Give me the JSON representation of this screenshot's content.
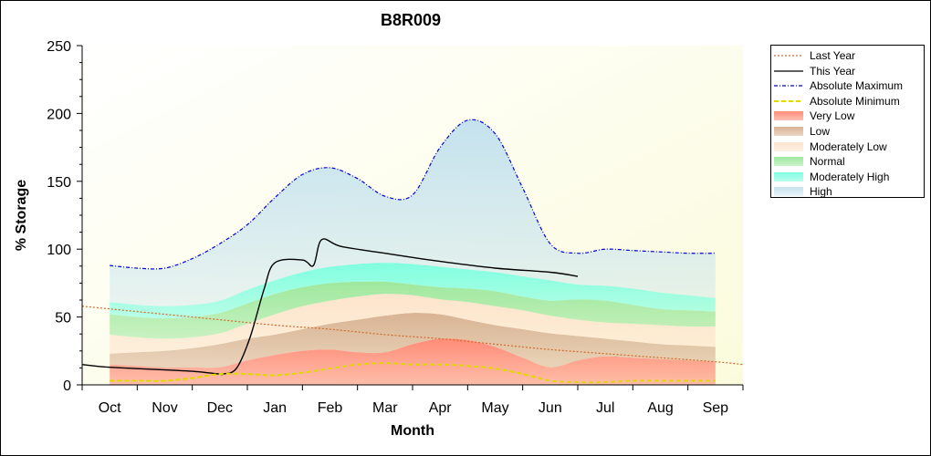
{
  "chart_data": {
    "type": "area",
    "title": "B8R009",
    "xlabel": "Month",
    "ylabel": "% Storage",
    "ylim": [
      0,
      250
    ],
    "yticks": [
      0,
      50,
      100,
      150,
      200,
      250
    ],
    "categories": [
      "Oct",
      "Nov",
      "Dec",
      "Jan",
      "Feb",
      "Mar",
      "Apr",
      "May",
      "Jun",
      "Jul",
      "Aug",
      "Sep"
    ],
    "grid": false,
    "legend_position": "right",
    "x_domain": [
      -0.5,
      11.5
    ],
    "bands_x": [
      0,
      0.5,
      1,
      1.5,
      2,
      2.5,
      3,
      3.5,
      4,
      4.5,
      5,
      5.5,
      6,
      6.5,
      7,
      7.5,
      8,
      8.5,
      9,
      9.5,
      10,
      10.5,
      11
    ],
    "bands": [
      {
        "name": "Very Low",
        "color": "#ff8c78",
        "lower": [
          0,
          0,
          0,
          0,
          0,
          0,
          0,
          0,
          0,
          0,
          0,
          0,
          0,
          0,
          0,
          0,
          0,
          0,
          0,
          0,
          0,
          0,
          0
        ],
        "upper": [
          15,
          14,
          13,
          13,
          13,
          18,
          22,
          25,
          26,
          24,
          24,
          30,
          34,
          33,
          28,
          20,
          13,
          18,
          21,
          20,
          19,
          18,
          17
        ]
      },
      {
        "name": "Low",
        "color": "#d9b394",
        "lower": [
          15,
          14,
          13,
          13,
          13,
          18,
          22,
          25,
          26,
          24,
          24,
          30,
          34,
          33,
          28,
          20,
          13,
          18,
          21,
          20,
          19,
          18,
          17
        ],
        "upper": [
          23,
          24,
          25,
          27,
          30,
          34,
          37,
          41,
          45,
          48,
          51,
          53,
          52,
          48,
          44,
          41,
          38,
          36,
          34,
          32,
          30,
          29,
          28
        ]
      },
      {
        "name": "Moderately Low",
        "color": "#fde4cc",
        "lower": [
          23,
          24,
          25,
          27,
          30,
          34,
          37,
          41,
          45,
          48,
          51,
          53,
          52,
          48,
          44,
          41,
          38,
          36,
          34,
          32,
          30,
          29,
          28
        ],
        "upper": [
          37,
          35,
          34,
          35,
          38,
          45,
          52,
          58,
          62,
          65,
          67,
          66,
          63,
          61,
          58,
          55,
          51,
          48,
          46,
          45,
          44,
          43,
          43
        ]
      },
      {
        "name": "Normal",
        "color": "#9ee89e",
        "lower": [
          37,
          35,
          34,
          35,
          38,
          45,
          52,
          58,
          62,
          65,
          67,
          66,
          63,
          61,
          58,
          55,
          51,
          48,
          46,
          45,
          44,
          43,
          43
        ],
        "upper": [
          52,
          50,
          49,
          50,
          53,
          60,
          67,
          72,
          75,
          76,
          76,
          74,
          72,
          71,
          69,
          65,
          62,
          63,
          62,
          59,
          56,
          55,
          54
        ]
      },
      {
        "name": "Moderately High",
        "color": "#80ffe0",
        "lower": [
          52,
          50,
          49,
          50,
          53,
          60,
          67,
          72,
          75,
          76,
          76,
          74,
          72,
          71,
          69,
          65,
          62,
          63,
          62,
          59,
          56,
          55,
          54
        ],
        "upper": [
          61,
          59,
          58,
          59,
          62,
          70,
          77,
          83,
          87,
          89,
          90,
          89,
          87,
          85,
          83,
          80,
          77,
          74,
          73,
          71,
          68,
          66,
          64
        ]
      },
      {
        "name": "High",
        "color": "#c4e2ee",
        "lower": [
          61,
          59,
          58,
          59,
          62,
          70,
          77,
          83,
          87,
          89,
          90,
          89,
          87,
          85,
          83,
          80,
          77,
          74,
          73,
          71,
          68,
          66,
          64
        ],
        "upper": [
          88,
          86,
          86,
          93,
          104,
          118,
          138,
          155,
          160,
          152,
          139,
          140,
          175,
          195,
          185,
          145,
          104,
          97,
          100,
          99,
          98,
          97,
          97
        ]
      }
    ],
    "series": [
      {
        "name": "Last Year",
        "color": "#d26a2a",
        "style": "dotted",
        "x": [
          -0.5,
          0,
          1,
          2,
          3,
          4,
          5,
          6,
          7,
          8,
          9,
          10,
          11,
          11.5
        ],
        "y": [
          58,
          56,
          52,
          48,
          44,
          41,
          37,
          34,
          30,
          26,
          23,
          20,
          17,
          15
        ]
      },
      {
        "name": "This Year",
        "color": "#000000",
        "style": "solid",
        "x": [
          -0.5,
          0,
          1,
          1.5,
          2,
          2.05,
          2.3,
          2.55,
          2.8,
          3,
          3.5,
          3.7,
          3.85,
          4.2,
          5,
          6,
          7,
          8,
          8.5
        ],
        "y": [
          15,
          13,
          11,
          10,
          8,
          8,
          12,
          35,
          70,
          90,
          92,
          88,
          107,
          102,
          97,
          91,
          86,
          83,
          80
        ]
      },
      {
        "name": "Absolute Maximum",
        "color": "#0000e0",
        "style": "dashdot",
        "x": [
          0,
          0.5,
          1,
          1.5,
          2,
          2.5,
          3,
          3.5,
          4,
          4.5,
          5,
          5.5,
          6,
          6.5,
          7,
          7.5,
          8,
          8.5,
          9,
          9.5,
          10,
          10.5,
          11
        ],
        "y": [
          88,
          86,
          86,
          93,
          104,
          118,
          138,
          155,
          160,
          152,
          139,
          140,
          175,
          195,
          185,
          145,
          104,
          97,
          100,
          99,
          98,
          97,
          97
        ]
      },
      {
        "name": "Absolute Minimum",
        "color": "#e0d800",
        "style": "dashed",
        "x": [
          0,
          0.5,
          1,
          1.5,
          2,
          2.5,
          3,
          3.5,
          4,
          4.5,
          5,
          5.5,
          6,
          6.5,
          7,
          7.5,
          8,
          8.5,
          9,
          9.5,
          10,
          10.5,
          11
        ],
        "y": [
          3,
          3,
          3,
          5,
          8,
          8,
          7,
          9,
          12,
          15,
          16,
          15,
          15,
          14,
          12,
          8,
          3,
          2,
          2,
          3,
          3,
          3,
          3
        ]
      }
    ],
    "legend": [
      "Last Year",
      "This Year",
      "Absolute Maximum",
      "Absolute Minimum",
      "Very Low",
      "Low",
      "Moderately Low",
      "Normal",
      "Moderately High",
      "High"
    ],
    "colors": {
      "plot_background_top": "#fbfbdc",
      "plot_background_bottom": "#ffffff"
    }
  }
}
